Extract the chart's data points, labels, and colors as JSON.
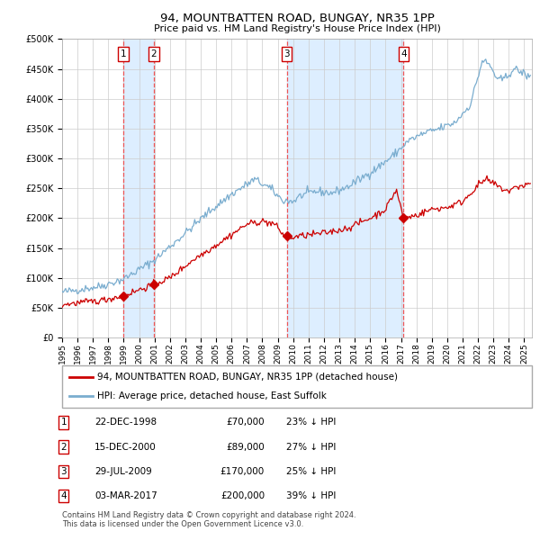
{
  "title": "94, MOUNTBATTEN ROAD, BUNGAY, NR35 1PP",
  "subtitle": "Price paid vs. HM Land Registry's House Price Index (HPI)",
  "footer": "Contains HM Land Registry data © Crown copyright and database right 2024.\nThis data is licensed under the Open Government Licence v3.0.",
  "legend_property": "94, MOUNTBATTEN ROAD, BUNGAY, NR35 1PP (detached house)",
  "legend_hpi": "HPI: Average price, detached house, East Suffolk",
  "transactions": [
    {
      "label": "1",
      "date": "22-DEC-1998",
      "price": 70000,
      "pct": "23%",
      "x_year": 1998.97
    },
    {
      "label": "2",
      "date": "15-DEC-2000",
      "price": 89000,
      "pct": "27%",
      "x_year": 2000.96
    },
    {
      "label": "3",
      "date": "29-JUL-2009",
      "price": 170000,
      "pct": "25%",
      "x_year": 2009.58
    },
    {
      "label": "4",
      "date": "03-MAR-2017",
      "price": 200000,
      "pct": "39%",
      "x_year": 2017.17
    }
  ],
  "property_color": "#cc0000",
  "hpi_color": "#7aadcf",
  "vline_color": "#ee5555",
  "shade_color": "#ddeeff",
  "grid_color": "#cccccc",
  "ylim": [
    0,
    500000
  ],
  "yticks": [
    0,
    50000,
    100000,
    150000,
    200000,
    250000,
    300000,
    350000,
    400000,
    450000,
    500000
  ],
  "xlim_start": 1995.0,
  "xlim_end": 2025.5,
  "xticks": [
    1995,
    1996,
    1997,
    1998,
    1999,
    2000,
    2001,
    2002,
    2003,
    2004,
    2005,
    2006,
    2007,
    2008,
    2009,
    2010,
    2011,
    2012,
    2013,
    2014,
    2015,
    2016,
    2017,
    2018,
    2019,
    2020,
    2021,
    2022,
    2023,
    2024,
    2025
  ],
  "table_labels": [
    "1",
    "2",
    "3",
    "4"
  ],
  "table_dates": [
    "22-DEC-1998",
    "15-DEC-2000",
    "29-JUL-2009",
    "03-MAR-2017"
  ],
  "table_prices": [
    "£70,000",
    "£89,000",
    "£170,000",
    "£200,000"
  ],
  "table_hpi": [
    "23% ↓ HPI",
    "27% ↓ HPI",
    "25% ↓ HPI",
    "39% ↓ HPI"
  ]
}
